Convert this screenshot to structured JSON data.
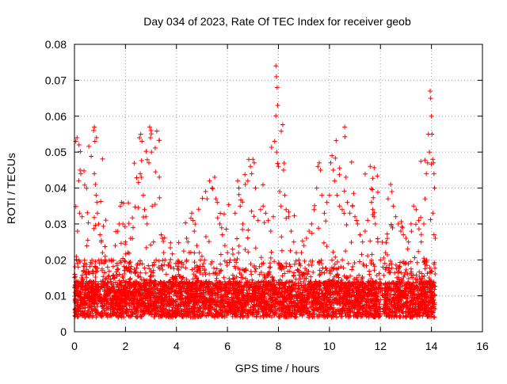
{
  "colors": {
    "series": "#ff0000",
    "axis": "#000000",
    "grid": "#a0a0a0",
    "background": "#ffffff"
  },
  "chart_data": {
    "type": "scatter",
    "title": "Day 034 of 2023, Rate Of TEC Index for receiver geob",
    "xlabel": "GPS time / hours",
    "ylabel": "ROTI / TECUs",
    "xlim": [
      0,
      16
    ],
    "ylim": [
      0,
      0.08
    ],
    "x_ticks": [
      0,
      2,
      4,
      6,
      8,
      10,
      12,
      14,
      16
    ],
    "x_tick_labels": [
      "0",
      "2",
      "4",
      "6",
      "8",
      "10",
      "12",
      "14",
      "16"
    ],
    "y_ticks": [
      0,
      0.01,
      0.02,
      0.03,
      0.04,
      0.05,
      0.06,
      0.07,
      0.08
    ],
    "y_tick_labels": [
      "0",
      "0.01",
      "0.02",
      "0.03",
      "0.04",
      "0.05",
      "0.06",
      "0.07",
      "0.08"
    ],
    "grid": true,
    "marker": "plus",
    "data_x_range": [
      0,
      14.15
    ],
    "series": [
      {
        "name": "ROTI",
        "color": "#ff0000",
        "points": [
          [
            0.05,
            0.053
          ],
          [
            0.1,
            0.054
          ],
          [
            0.18,
            0.052
          ],
          [
            0.22,
            0.045
          ],
          [
            0.25,
            0.044
          ],
          [
            0.2,
            0.033
          ],
          [
            0.3,
            0.032
          ],
          [
            0.12,
            0.028
          ],
          [
            0.08,
            0.02
          ],
          [
            0.15,
            0.018
          ],
          [
            0.28,
            0.015
          ],
          [
            0.35,
            0.017
          ],
          [
            0.4,
            0.019
          ],
          [
            0.45,
            0.016
          ],
          [
            0.78,
            0.057
          ],
          [
            0.75,
            0.056
          ],
          [
            0.8,
            0.053
          ],
          [
            0.78,
            0.044
          ],
          [
            0.82,
            0.041
          ],
          [
            0.85,
            0.038
          ],
          [
            0.88,
            0.036
          ],
          [
            0.9,
            0.033
          ],
          [
            0.95,
            0.03
          ],
          [
            1.0,
            0.027
          ],
          [
            1.05,
            0.025
          ],
          [
            1.1,
            0.022
          ],
          [
            1.2,
            0.02
          ],
          [
            1.3,
            0.018
          ],
          [
            1.45,
            0.02
          ],
          [
            1.6,
            0.024
          ],
          [
            1.7,
            0.028
          ],
          [
            1.75,
            0.03
          ],
          [
            1.8,
            0.035
          ],
          [
            1.85,
            0.036
          ],
          [
            1.9,
            0.03
          ],
          [
            2.0,
            0.025
          ],
          [
            2.1,
            0.022
          ],
          [
            2.2,
            0.026
          ],
          [
            2.3,
            0.029
          ],
          [
            2.55,
            0.054
          ],
          [
            2.6,
            0.055
          ],
          [
            2.65,
            0.053
          ],
          [
            2.58,
            0.044
          ],
          [
            2.62,
            0.043
          ],
          [
            2.7,
            0.038
          ],
          [
            2.75,
            0.034
          ],
          [
            2.8,
            0.032
          ],
          [
            2.85,
            0.03
          ],
          [
            2.95,
            0.057
          ],
          [
            3.0,
            0.056
          ],
          [
            2.98,
            0.054
          ],
          [
            3.02,
            0.05
          ],
          [
            2.92,
            0.047
          ],
          [
            3.05,
            0.035
          ],
          [
            3.1,
            0.025
          ],
          [
            3.2,
            0.02
          ],
          [
            3.3,
            0.018
          ],
          [
            3.4,
            0.027
          ],
          [
            3.45,
            0.026
          ],
          [
            3.5,
            0.022
          ],
          [
            3.55,
            0.02
          ],
          [
            3.6,
            0.016
          ],
          [
            3.7,
            0.014
          ],
          [
            3.8,
            0.012
          ],
          [
            3.9,
            0.013
          ],
          [
            4.0,
            0.011
          ],
          [
            4.1,
            0.012
          ],
          [
            4.2,
            0.014
          ],
          [
            4.4,
            0.026
          ],
          [
            4.45,
            0.025
          ],
          [
            4.5,
            0.022
          ],
          [
            4.6,
            0.033
          ],
          [
            4.65,
            0.031
          ],
          [
            4.7,
            0.028
          ],
          [
            4.8,
            0.024
          ],
          [
            4.9,
            0.022
          ],
          [
            5.0,
            0.021
          ],
          [
            5.1,
            0.02
          ],
          [
            5.2,
            0.037
          ],
          [
            5.3,
            0.042
          ],
          [
            5.4,
            0.04
          ],
          [
            5.5,
            0.043
          ],
          [
            5.55,
            0.037
          ],
          [
            5.6,
            0.036
          ],
          [
            5.7,
            0.03
          ],
          [
            5.8,
            0.027
          ],
          [
            5.9,
            0.024
          ],
          [
            6.0,
            0.022
          ],
          [
            6.1,
            0.02
          ],
          [
            6.2,
            0.023
          ],
          [
            6.3,
            0.033
          ],
          [
            6.4,
            0.042
          ],
          [
            6.45,
            0.04
          ],
          [
            6.5,
            0.035
          ],
          [
            6.6,
            0.03
          ],
          [
            6.7,
            0.041
          ],
          [
            6.8,
            0.042
          ],
          [
            6.9,
            0.046
          ],
          [
            6.95,
            0.044
          ],
          [
            7.0,
            0.048
          ],
          [
            7.05,
            0.047
          ],
          [
            7.1,
            0.04
          ],
          [
            7.2,
            0.031
          ],
          [
            7.3,
            0.034
          ],
          [
            7.4,
            0.035
          ],
          [
            7.5,
            0.033
          ],
          [
            7.6,
            0.031
          ],
          [
            7.7,
            0.028
          ],
          [
            7.8,
            0.032
          ],
          [
            7.85,
            0.053
          ],
          [
            7.9,
            0.074
          ],
          [
            7.92,
            0.071
          ],
          [
            7.95,
            0.068
          ],
          [
            7.97,
            0.063
          ],
          [
            7.93,
            0.05
          ],
          [
            8.0,
            0.046
          ],
          [
            8.05,
            0.039
          ],
          [
            8.1,
            0.035
          ],
          [
            8.2,
            0.045
          ],
          [
            8.25,
            0.038
          ],
          [
            8.3,
            0.034
          ],
          [
            8.4,
            0.032
          ],
          [
            8.5,
            0.028
          ],
          [
            8.6,
            0.025
          ],
          [
            8.7,
            0.022
          ],
          [
            8.8,
            0.02
          ],
          [
            8.9,
            0.022
          ],
          [
            9.0,
            0.024
          ],
          [
            9.1,
            0.026
          ],
          [
            9.2,
            0.028
          ],
          [
            9.3,
            0.03
          ],
          [
            9.4,
            0.034
          ],
          [
            9.5,
            0.04
          ],
          [
            9.55,
            0.046
          ],
          [
            9.6,
            0.047
          ],
          [
            9.65,
            0.045
          ],
          [
            9.7,
            0.038
          ],
          [
            9.8,
            0.033
          ],
          [
            9.9,
            0.036
          ],
          [
            10.0,
            0.038
          ],
          [
            10.05,
            0.047
          ],
          [
            10.1,
            0.049
          ],
          [
            10.15,
            0.045
          ],
          [
            10.2,
            0.042
          ],
          [
            10.3,
            0.038
          ],
          [
            10.4,
            0.035
          ],
          [
            10.5,
            0.034
          ],
          [
            10.6,
            0.057
          ],
          [
            10.65,
            0.043
          ],
          [
            10.7,
            0.036
          ],
          [
            10.8,
            0.033
          ],
          [
            10.9,
            0.035
          ],
          [
            11.0,
            0.032
          ],
          [
            11.1,
            0.03
          ],
          [
            11.2,
            0.027
          ],
          [
            11.3,
            0.025
          ],
          [
            11.4,
            0.028
          ],
          [
            11.5,
            0.031
          ],
          [
            11.6,
            0.046
          ],
          [
            11.65,
            0.036
          ],
          [
            11.7,
            0.034
          ],
          [
            11.75,
            0.032
          ],
          [
            11.8,
            0.03
          ],
          [
            11.9,
            0.025
          ],
          [
            12.0,
            0.02
          ],
          [
            12.1,
            0.018
          ],
          [
            12.2,
            0.022
          ],
          [
            12.3,
            0.037
          ],
          [
            12.4,
            0.041
          ],
          [
            12.45,
            0.039
          ],
          [
            12.5,
            0.035
          ],
          [
            12.6,
            0.032
          ],
          [
            12.7,
            0.03
          ],
          [
            12.8,
            0.028
          ],
          [
            12.9,
            0.027
          ],
          [
            13.0,
            0.026
          ],
          [
            13.1,
            0.025
          ],
          [
            13.2,
            0.03
          ],
          [
            13.3,
            0.035
          ],
          [
            13.4,
            0.034
          ],
          [
            13.5,
            0.031
          ],
          [
            13.6,
            0.025
          ],
          [
            13.7,
            0.03
          ],
          [
            13.75,
            0.037
          ],
          [
            13.8,
            0.044
          ],
          [
            13.85,
            0.047
          ],
          [
            13.88,
            0.055
          ],
          [
            13.92,
            0.05
          ],
          [
            13.95,
            0.067
          ],
          [
            13.97,
            0.065
          ],
          [
            14.0,
            0.06
          ],
          [
            14.02,
            0.055
          ],
          [
            14.05,
            0.048
          ],
          [
            14.08,
            0.047
          ],
          [
            14.1,
            0.044
          ],
          [
            14.12,
            0.04
          ],
          [
            14.06,
            0.033
          ],
          [
            14.1,
            0.027
          ],
          [
            14.15,
            0.026
          ]
        ]
      }
    ]
  }
}
